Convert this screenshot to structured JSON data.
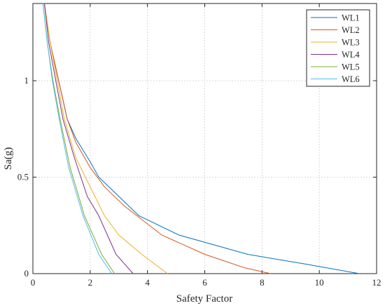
{
  "chart_data": {
    "type": "line",
    "title": "",
    "xlabel": "Safety Factor",
    "ylabel": "Sa(g)",
    "xlim": [
      0,
      12
    ],
    "ylim": [
      0,
      1.4
    ],
    "xticks": [
      "0",
      "2",
      "4",
      "6",
      "8",
      "10",
      "12"
    ],
    "yticks": [
      "0",
      "0.5",
      "1"
    ],
    "grid": true,
    "legend_position": "top-right",
    "series": [
      {
        "name": "WL1",
        "color": "#0072BD",
        "points": [
          [
            0.4,
            1.4
          ],
          [
            0.6,
            1.2
          ],
          [
            0.9,
            1.0
          ],
          [
            1.2,
            0.8
          ],
          [
            1.5,
            0.7
          ],
          [
            2.0,
            0.58
          ],
          [
            2.3,
            0.5
          ],
          [
            3.0,
            0.4
          ],
          [
            3.7,
            0.3
          ],
          [
            5.1,
            0.2
          ],
          [
            7.5,
            0.1
          ],
          [
            9.5,
            0.05
          ],
          [
            11.4,
            0.0
          ]
        ]
      },
      {
        "name": "WL2",
        "color": "#D95319",
        "points": [
          [
            0.4,
            1.4
          ],
          [
            0.6,
            1.2
          ],
          [
            0.9,
            1.0
          ],
          [
            1.2,
            0.8
          ],
          [
            1.5,
            0.68
          ],
          [
            2.0,
            0.55
          ],
          [
            2.5,
            0.45
          ],
          [
            3.2,
            0.35
          ],
          [
            4.5,
            0.2
          ],
          [
            6.0,
            0.1
          ],
          [
            7.4,
            0.03
          ],
          [
            8.3,
            0.0
          ]
        ]
      },
      {
        "name": "WL3",
        "color": "#EDB120",
        "points": [
          [
            0.4,
            1.4
          ],
          [
            0.6,
            1.2
          ],
          [
            0.85,
            1.0
          ],
          [
            1.1,
            0.8
          ],
          [
            1.5,
            0.6
          ],
          [
            2.0,
            0.45
          ],
          [
            2.5,
            0.3
          ],
          [
            3.0,
            0.2
          ],
          [
            3.8,
            0.1
          ],
          [
            4.7,
            0.0
          ]
        ]
      },
      {
        "name": "WL4",
        "color": "#7E2F8E",
        "points": [
          [
            0.4,
            1.4
          ],
          [
            0.55,
            1.2
          ],
          [
            0.8,
            1.0
          ],
          [
            1.05,
            0.8
          ],
          [
            1.45,
            0.6
          ],
          [
            1.9,
            0.4
          ],
          [
            2.3,
            0.3
          ],
          [
            2.9,
            0.1
          ],
          [
            3.5,
            0.0
          ]
        ]
      },
      {
        "name": "WL5",
        "color": "#77AC30",
        "points": [
          [
            0.35,
            1.4
          ],
          [
            0.5,
            1.2
          ],
          [
            0.7,
            1.0
          ],
          [
            0.95,
            0.8
          ],
          [
            1.3,
            0.55
          ],
          [
            1.8,
            0.3
          ],
          [
            2.4,
            0.1
          ],
          [
            2.85,
            0.0
          ]
        ]
      },
      {
        "name": "WL6",
        "color": "#4DBEEE",
        "points": [
          [
            0.35,
            1.4
          ],
          [
            0.5,
            1.2
          ],
          [
            0.68,
            1.0
          ],
          [
            0.92,
            0.8
          ],
          [
            1.25,
            0.55
          ],
          [
            1.75,
            0.3
          ],
          [
            2.3,
            0.1
          ],
          [
            2.75,
            0.0
          ]
        ]
      }
    ]
  }
}
